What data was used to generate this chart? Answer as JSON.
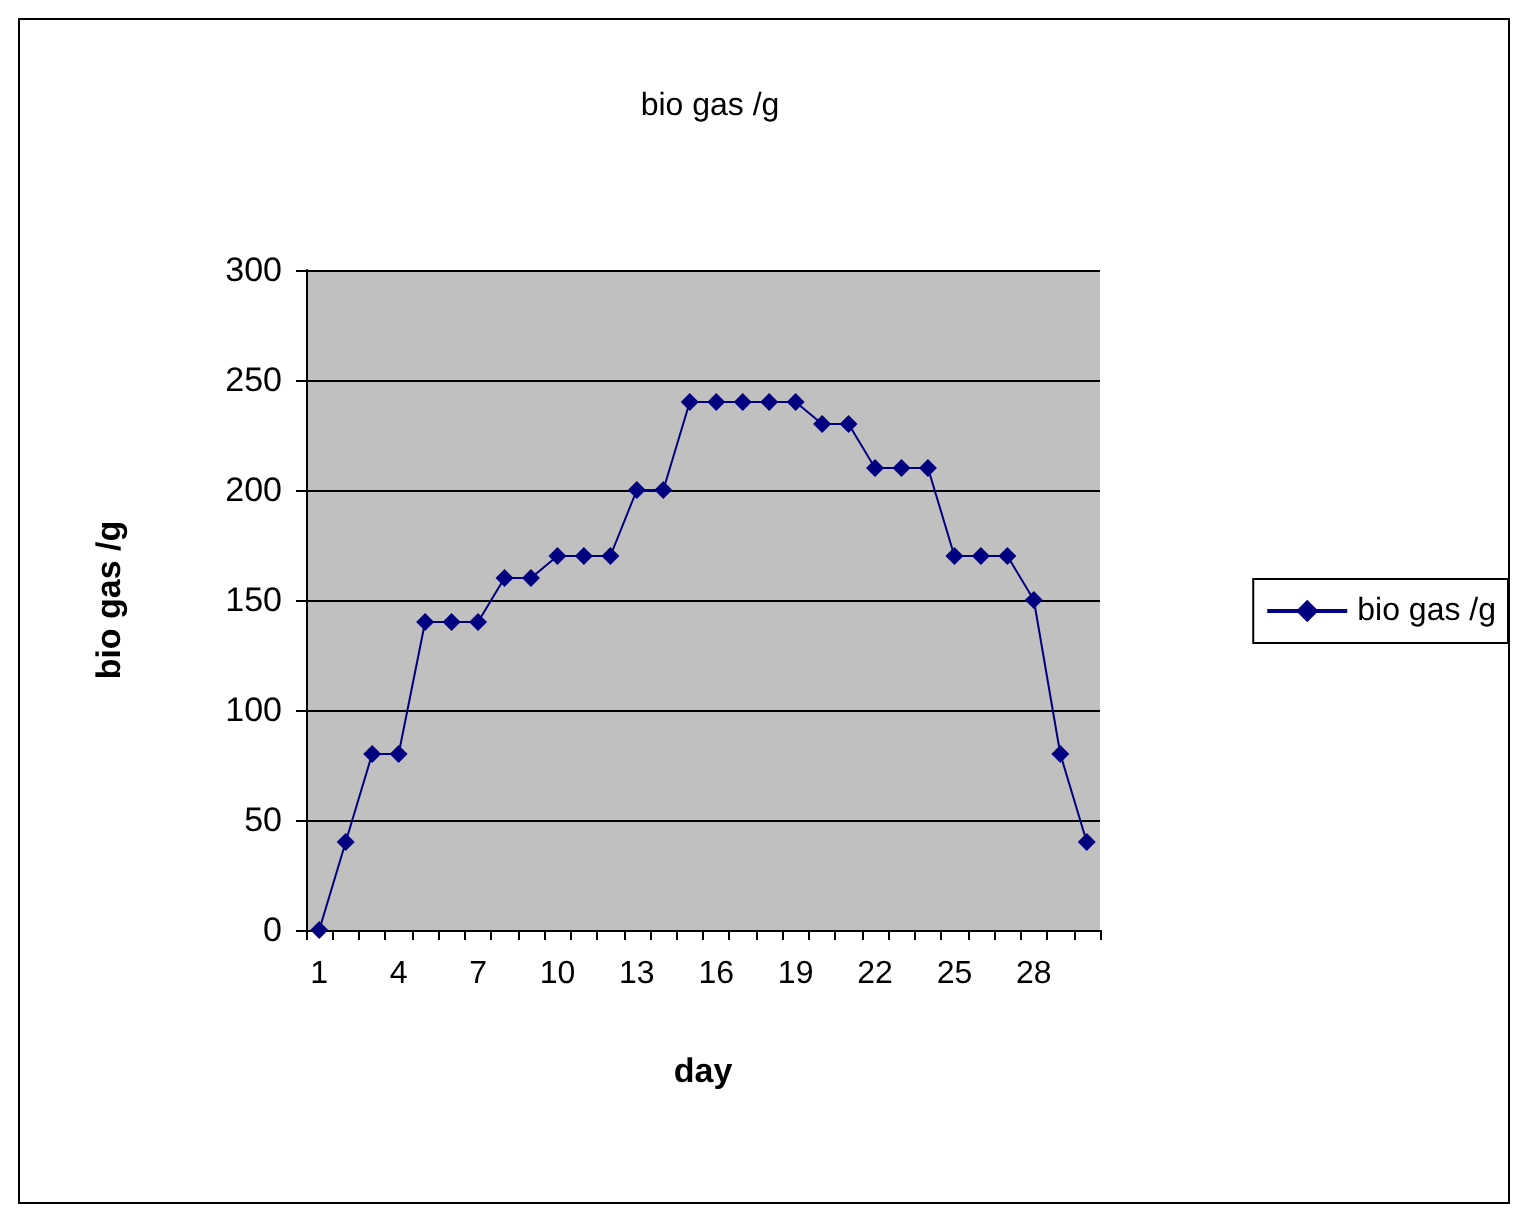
{
  "chart_data": {
    "type": "line",
    "title": "bio gas /g",
    "xlabel": "day",
    "ylabel": "bio gas /g",
    "categories": [
      "1",
      null,
      null,
      "4",
      null,
      null,
      "7",
      null,
      null,
      "10",
      null,
      null,
      "13",
      null,
      null,
      "16",
      null,
      null,
      "19",
      null,
      null,
      "22",
      null,
      null,
      "25",
      null,
      null,
      "28",
      null,
      null
    ],
    "series": [
      {
        "name": "bio gas /g",
        "color": "#000080",
        "values": [
          0,
          40,
          80,
          80,
          140,
          140,
          140,
          160,
          160,
          170,
          170,
          170,
          200,
          200,
          240,
          240,
          240,
          240,
          240,
          230,
          230,
          210,
          210,
          210,
          170,
          170,
          170,
          150,
          80,
          40
        ]
      }
    ],
    "ylim": [
      0,
      300
    ],
    "yticks": [
      0,
      50,
      100,
      150,
      200,
      250,
      300
    ],
    "grid": "y",
    "legend": "right",
    "marker": "diamond",
    "line_style": "solid"
  }
}
